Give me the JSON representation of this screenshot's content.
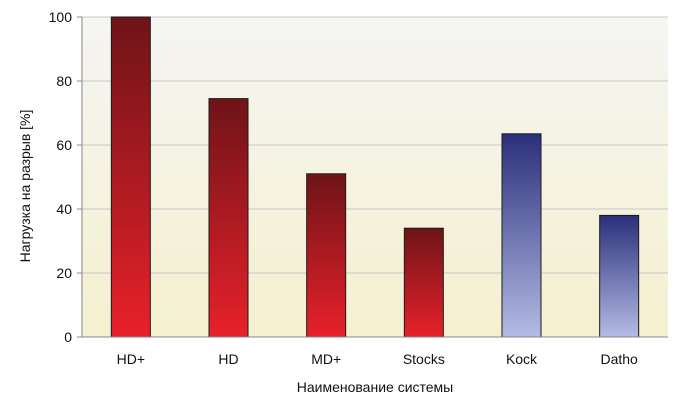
{
  "chart_data": {
    "type": "bar",
    "title": "",
    "xlabel": "Наименование системы",
    "ylabel": "Нагрузка на разрыв  [%]",
    "categories": [
      "HD+",
      "HD",
      "MD+",
      "Stocks",
      "Kock",
      "Datho"
    ],
    "values": [
      100,
      74.5,
      51,
      34,
      63.5,
      38
    ],
    "ylim": [
      0,
      100
    ],
    "yticks": [
      0,
      20,
      40,
      60,
      80,
      100
    ],
    "grid": true,
    "legend": "none",
    "colors": {
      "red_bar_top": "#6e1418",
      "red_bar_bottom": "#e8212a",
      "blue_bar_top": "#2a2f7a",
      "blue_bar_bottom": "#b4bbe4",
      "plot_bg_top": "#f5f5f3",
      "plot_bg_bottom": "#f5f0cf",
      "gridline": "#c8c8c8",
      "axis": "#888888"
    },
    "bar_color_groups": [
      "red",
      "red",
      "red",
      "red",
      "blue",
      "blue"
    ]
  }
}
